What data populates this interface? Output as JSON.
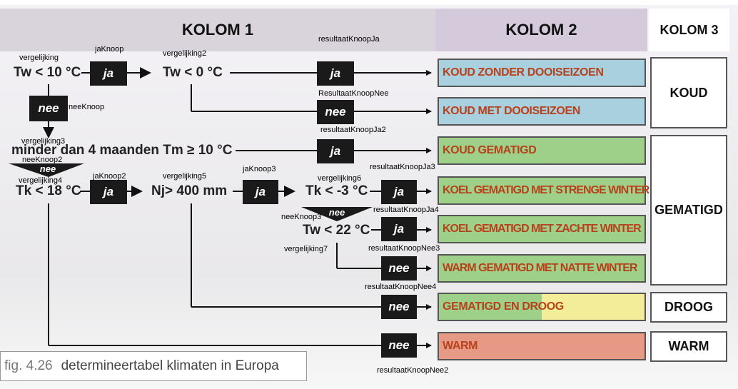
{
  "headers": {
    "kolom1": "KOLOM 1",
    "kolom2": "KOLOM 2",
    "kolom3": "KOLOM 3"
  },
  "conditions": {
    "tw10": "Tw < 10 °C",
    "tw0": "Tw < 0 °C",
    "tm10": "minder dan 4 maanden Tm ≥ 10 °C",
    "tk18": "Tk < 18 °C",
    "nj400": "Nj> 400 mm",
    "tkm3": "Tk < -3 °C",
    "tw22": "Tw < 22 °C"
  },
  "node_labels": {
    "vergelijking": "vergelijking",
    "vergelijking2": "vergelijking2",
    "vergelijking3": "vergelijking3",
    "vergelijking4": "vergelijking4",
    "vergelijking5": "vergelijking5",
    "vergelijking6": "vergelijking6",
    "vergelijking7": "vergelijking7",
    "jaKnoop": "jaKnoop",
    "jaKnoop2": "jaKnoop2",
    "jaKnoop3": "jaKnoop3",
    "neeKnoop": "neeKnoop",
    "neeKnoop2": "neeKnoop2",
    "neeKnoop3": "neeKnoop3",
    "resultaatKnoopJa": "resultaatKnoopJa",
    "ResultaatKnoopNee": "ResultaatKnoopNee",
    "resultaatKnoopJa2": "resultaatKnoopJa2",
    "resultaatKnoopJa3": "resultaatKnoopJa3",
    "resultaatKnoopJa4": "resultaatKnoopJa4",
    "resultaatKnoopNee2": "resultaatKnoopNee2",
    "resultaatKnoopNee3": "resultaatKnoopNee3",
    "resultaatKnoopNee4": "resultaatKnoopNee4"
  },
  "knop": {
    "ja": "ja",
    "nee": "nee"
  },
  "results": {
    "r1": "KOUD ZONDER DOOISEIZOEN",
    "r2": "KOUD MET DOOISEIZOEN",
    "r3": "KOUD GEMATIGD",
    "r4": "KOEL GEMATIGD MET STRENGE WINTER",
    "r5": "KOEL GEMATIGD MET ZACHTE WINTER",
    "r6": "WARM GEMATIGD MET NATTE WINTER",
    "r7": "GEMATIGD EN DROOG",
    "r8": "WARM"
  },
  "categories": {
    "koud": "KOUD",
    "gematigd": "GEMATIGD",
    "droog": "DROOG",
    "warm": "WARM"
  },
  "colors": {
    "blue": "#a9d0de",
    "green": "#9fd08a",
    "yellow": "#f3ed9a",
    "red": "#e69a86",
    "result_text": "#b8401a"
  },
  "caption": {
    "number": "fig. 4.26",
    "text": "determineertabel klimaten in Europa"
  }
}
